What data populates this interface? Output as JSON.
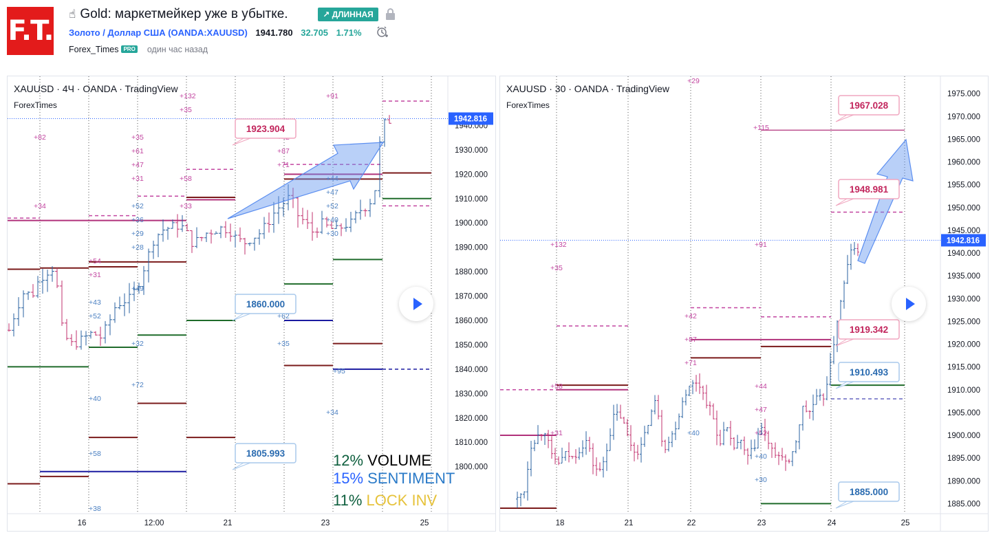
{
  "header": {
    "logo_text": "F.T.",
    "title": "Gold: маркетмейкер уже в убытке.",
    "title_icon": "pointing-hand-icon",
    "direction_badge": "↗ ДЛИННАЯ",
    "symbol_full": "Золото / Доллар США (OANDA:XAUUSD)",
    "last_price": "1941.780",
    "change": "32.705",
    "change_pct": "1.71%",
    "author": "Forex_Times",
    "author_badge": "PRO",
    "published": "один час назад",
    "colors": {
      "up": "#26a69a",
      "logo_bg": "#e31b1b",
      "link": "#2962ff"
    }
  },
  "overlay": {
    "volume_pct": "12%",
    "volume_label": "VOLUME",
    "sentiment_pct": "15%",
    "sentiment_label": "SENTIMENT",
    "lockinv_pct": "11%",
    "lockinv_label": "LOCK INV"
  },
  "chart_data": [
    {
      "type": "candlestick",
      "legend": "XAUUSD · 4Ч · OANDA · TradingView",
      "author": "ForexTimes",
      "y_ticks": [
        "1940.000",
        "1930.000",
        "1920.000",
        "1910.000",
        "1900.000",
        "1890.000",
        "1880.000",
        "1870.000",
        "1860.000",
        "1850.000",
        "1840.000",
        "1830.000",
        "1820.000",
        "1810.000",
        "1800.000"
      ],
      "x_ticks": [
        "16",
        "12:00",
        "21",
        "23",
        "25"
      ],
      "ylim": [
        1792,
        1950
      ],
      "last_price": "1942.816",
      "callouts": [
        "1923.904",
        "1860.000",
        "1805.993"
      ],
      "level_labels": [
        "+82",
        "+132",
        "+35",
        "+35",
        "+61",
        "+47",
        "+31",
        "+91",
        "+42",
        "+87",
        "+71",
        "+58",
        "+33",
        "+34",
        "+52",
        "+36",
        "+29",
        "+28",
        "+54",
        "+31",
        "+49",
        "+43",
        "+52",
        "+32",
        "+72",
        "+40",
        "+58",
        "+38",
        "+44",
        "+47",
        "+52",
        "+40",
        "+30",
        "+62",
        "+35",
        "+95",
        "+34"
      ],
      "close_path": [
        1856,
        1865,
        1872,
        1870,
        1877,
        1880,
        1882,
        1856,
        1850,
        1851,
        1853,
        1855,
        1853,
        1858,
        1866,
        1868,
        1869,
        1875,
        1884,
        1893,
        1897,
        1898,
        1899,
        1898,
        1892,
        1893,
        1896,
        1897,
        1898,
        1897,
        1893,
        1892,
        1894,
        1896,
        1900,
        1905,
        1908,
        1911,
        1903,
        1900,
        1896,
        1900,
        1898,
        1897,
        1899,
        1900,
        1905,
        1907,
        1911,
        1940,
        1942
      ]
    },
    {
      "type": "candlestick",
      "legend": "XAUUSD · 30 · OANDA · TradingView",
      "author": "ForexTimes",
      "y_ticks": [
        "1975.000",
        "1970.000",
        "1965.000",
        "1960.000",
        "1955.000",
        "1950.000",
        "1945.000",
        "1940.000",
        "1935.000",
        "1930.000",
        "1925.000",
        "1920.000",
        "1915.000",
        "1910.000",
        "1905.000",
        "1900.000",
        "1895.000",
        "1890.000",
        "1885.000"
      ],
      "x_ticks": [
        "18",
        "21",
        "22",
        "23",
        "24",
        "25"
      ],
      "ylim": [
        1884,
        1977
      ],
      "last_price": "1942.816",
      "callouts": [
        "1967.028",
        "1948.981",
        "1919.342",
        "1910.493",
        "1885.000"
      ],
      "level_labels": [
        "+29",
        "+132",
        "+35",
        "+91",
        "+115",
        "+42",
        "+87",
        "+71",
        "+58",
        "+44",
        "+47",
        "+52",
        "+40",
        "+30",
        "+40",
        "+31"
      ]
    }
  ]
}
